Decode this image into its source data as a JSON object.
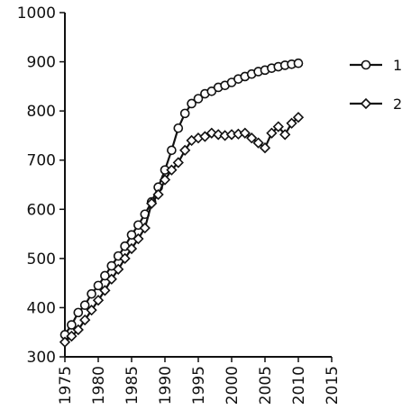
{
  "chart_data": {
    "type": "line",
    "xlim": [
      1975,
      2015
    ],
    "ylim": [
      300,
      1000
    ],
    "x_ticks": [
      1975,
      1980,
      1985,
      1990,
      1995,
      2000,
      2005,
      2010,
      2015
    ],
    "y_ticks": [
      300,
      400,
      500,
      600,
      700,
      800,
      900,
      1000
    ],
    "grid": false,
    "legend_position": "right",
    "series": [
      {
        "name": "1",
        "marker": "circle",
        "x": [
          1975,
          1976,
          1977,
          1978,
          1979,
          1980,
          1981,
          1982,
          1983,
          1984,
          1985,
          1986,
          1987,
          1988,
          1989,
          1990,
          1991,
          1992,
          1993,
          1994,
          1995,
          1996,
          1997,
          1998,
          1999,
          2000,
          2001,
          2002,
          2003,
          2004,
          2005,
          2006,
          2007,
          2008,
          2009,
          2010
        ],
        "values": [
          345,
          365,
          390,
          405,
          428,
          445,
          465,
          485,
          505,
          525,
          548,
          568,
          590,
          615,
          645,
          680,
          720,
          765,
          795,
          815,
          825,
          835,
          840,
          848,
          852,
          858,
          865,
          870,
          875,
          880,
          883,
          887,
          890,
          893,
          895,
          897
        ]
      },
      {
        "name": "2",
        "marker": "diamond",
        "x": [
          1975,
          1976,
          1977,
          1978,
          1979,
          1980,
          1981,
          1982,
          1983,
          1984,
          1985,
          1986,
          1987,
          1988,
          1989,
          1990,
          1991,
          1992,
          1993,
          1994,
          1995,
          1996,
          1997,
          1998,
          1999,
          2000,
          2001,
          2002,
          2003,
          2004,
          2005,
          2006,
          2007,
          2008,
          2009,
          2010
        ],
        "values": [
          330,
          342,
          355,
          375,
          395,
          415,
          435,
          458,
          478,
          500,
          520,
          540,
          562,
          612,
          630,
          660,
          680,
          695,
          720,
          740,
          745,
          748,
          755,
          752,
          750,
          752,
          753,
          755,
          745,
          735,
          725,
          755,
          768,
          752,
          775,
          787
        ]
      }
    ]
  }
}
